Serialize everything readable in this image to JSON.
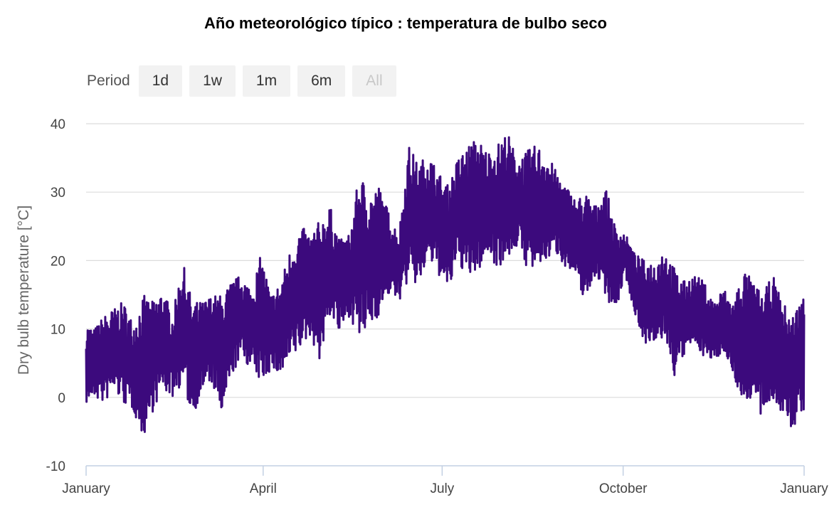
{
  "title": "Año meteorológico típico : temperatura de bulbo seco",
  "period_selector": {
    "label": "Period",
    "buttons": [
      {
        "label": "1d",
        "enabled": true
      },
      {
        "label": "1w",
        "enabled": true
      },
      {
        "label": "1m",
        "enabled": true
      },
      {
        "label": "6m",
        "enabled": true
      },
      {
        "label": "All",
        "enabled": false
      }
    ]
  },
  "colors": {
    "series": "#3c0a7d",
    "grid": "#dcdcdc",
    "axis": "#c3d0e3"
  },
  "chart_data": {
    "type": "line",
    "title": "Año meteorológico típico : temperatura de bulbo seco",
    "xlabel": "",
    "ylabel": "Dry bulb temperature [°C]",
    "xlim": [
      "2019-01-01",
      "2020-01-01"
    ],
    "ylim": [
      -10,
      40
    ],
    "yticks": [
      -10,
      0,
      10,
      20,
      30,
      40
    ],
    "xticks": [
      {
        "date": "2019-01-01",
        "label": "January"
      },
      {
        "date": "2019-04-01",
        "label": "April"
      },
      {
        "date": "2019-07-01",
        "label": "July"
      },
      {
        "date": "2019-10-01",
        "label": "October"
      },
      {
        "date": "2020-01-01",
        "label": "January"
      }
    ],
    "grid": true,
    "legend": "none",
    "series": [
      {
        "x": [
          "2019-01-01",
          "2019-01-05",
          "2019-01-10",
          "2019-01-15",
          "2019-01-20",
          "2019-01-25",
          "2019-01-30",
          "2019-02-04",
          "2019-02-09",
          "2019-02-14",
          "2019-02-19",
          "2019-02-24",
          "2019-03-01",
          "2019-03-06",
          "2019-03-11",
          "2019-03-16",
          "2019-03-21",
          "2019-03-26",
          "2019-03-31",
          "2019-04-05",
          "2019-04-10",
          "2019-04-15",
          "2019-04-20",
          "2019-04-25",
          "2019-04-30",
          "2019-05-05",
          "2019-05-10",
          "2019-05-15",
          "2019-05-20",
          "2019-05-25",
          "2019-05-30",
          "2019-06-04",
          "2019-06-09",
          "2019-06-14",
          "2019-06-19",
          "2019-06-24",
          "2019-06-29",
          "2019-07-04",
          "2019-07-09",
          "2019-07-14",
          "2019-07-19",
          "2019-07-24",
          "2019-07-29",
          "2019-08-03",
          "2019-08-08",
          "2019-08-13",
          "2019-08-18",
          "2019-08-23",
          "2019-08-28",
          "2019-09-02",
          "2019-09-07",
          "2019-09-12",
          "2019-09-17",
          "2019-09-22",
          "2019-09-27",
          "2019-10-02",
          "2019-10-07",
          "2019-10-12",
          "2019-10-17",
          "2019-10-22",
          "2019-10-27",
          "2019-11-01",
          "2019-11-06",
          "2019-11-11",
          "2019-11-16",
          "2019-11-21",
          "2019-11-26",
          "2019-12-01",
          "2019-12-06",
          "2019-12-11",
          "2019-12-16",
          "2019-12-21",
          "2019-12-26",
          "2019-12-31"
        ],
        "min": [
          -1,
          0,
          -1,
          1,
          -1,
          -2,
          -6,
          -2,
          1,
          0,
          2,
          -3,
          1,
          2,
          -3,
          3,
          6,
          4,
          2,
          4,
          3,
          5,
          7,
          9,
          5,
          12,
          9,
          12,
          8,
          10,
          12,
          15,
          14,
          17,
          16,
          20,
          18,
          15,
          20,
          17,
          18,
          21,
          19,
          20,
          22,
          19,
          18,
          20,
          21,
          19,
          17,
          14,
          18,
          15,
          12,
          18,
          12,
          8,
          7,
          9,
          3,
          6,
          8,
          6,
          5,
          7,
          3,
          -1,
          0,
          -4,
          0,
          -3,
          -5,
          -2
        ],
        "max": [
          11,
          10,
          12,
          13,
          14,
          11,
          15,
          14,
          16,
          12,
          20,
          14,
          14,
          15,
          15,
          17,
          18,
          16,
          21,
          15,
          17,
          22,
          25,
          24,
          26,
          28,
          23,
          24,
          33,
          30,
          31,
          27,
          24,
          37,
          34,
          36,
          33,
          31,
          35,
          37,
          38,
          36,
          37,
          39,
          35,
          36,
          37,
          36,
          33,
          31,
          29,
          30,
          28,
          31,
          25,
          24,
          21,
          20,
          20,
          22,
          19,
          17,
          18,
          17,
          14,
          16,
          14,
          19,
          17,
          15,
          18,
          14,
          12,
          15
        ]
      }
    ]
  }
}
